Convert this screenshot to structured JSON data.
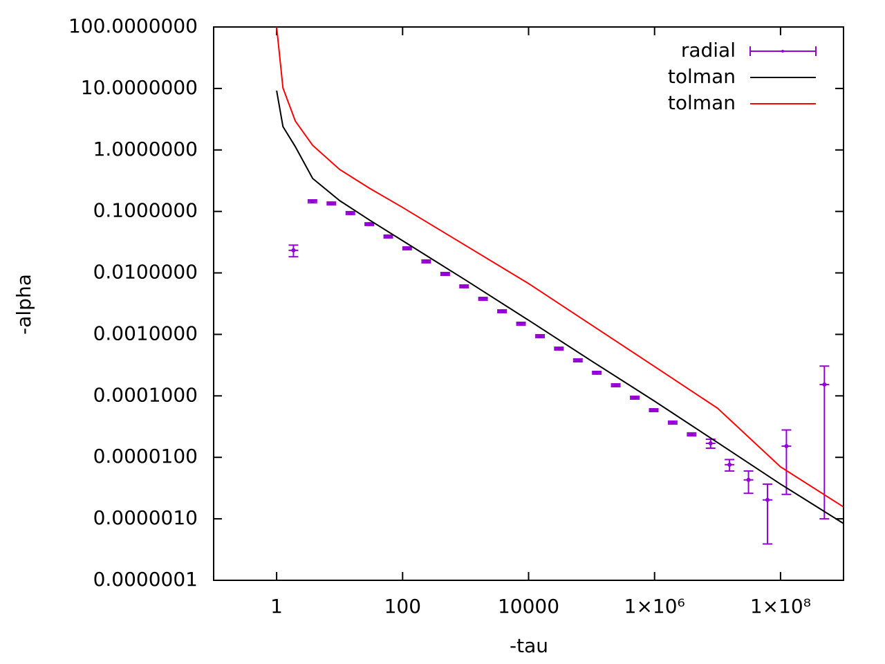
{
  "chart_data": {
    "type": "errorbar-line",
    "x_label": "-tau",
    "y_label": "-alpha",
    "xscale": "log",
    "yscale": "log",
    "legend": "top right",
    "xlim": [
      0.1,
      1000000000
    ],
    "ylim": [
      1e-07,
      100
    ],
    "xticks": [
      1,
      100,
      10000,
      {
        "value": 1000000,
        "label": "1×10⁶"
      },
      {
        "value": 100000000,
        "label": "1×10⁸"
      }
    ],
    "yticks": [
      {
        "value": 100,
        "label": "100.0000000"
      },
      {
        "value": 10,
        "label": "10.0000000"
      },
      {
        "value": 1,
        "label": "1.0000000"
      },
      {
        "value": 0.1,
        "label": "0.1000000"
      },
      {
        "value": 0.01,
        "label": "0.0100000"
      },
      {
        "value": 0.001,
        "label": "0.0010000"
      },
      {
        "value": 0.0001,
        "label": "0.0001000"
      },
      {
        "value": 1e-05,
        "label": "0.0000100"
      },
      {
        "value": 1e-06,
        "label": "0.0000010"
      },
      {
        "value": 1e-07,
        "label": "0.0000001"
      }
    ],
    "series": [
      {
        "name": "radial",
        "style": "errorbars",
        "color": "#9400d3",
        "x": [
          1.85,
          3.7,
          7.4,
          14.8,
          29.6,
          59.2,
          118,
          237,
          474,
          947,
          1890,
          3790,
          7580,
          15200,
          30300,
          60600,
          121000,
          242000,
          485000,
          970000,
          1940000,
          3880000,
          7760000,
          15500000,
          31000000,
          62100000,
          124000000,
          497000000
        ],
        "values": [
          0.0233,
          0.146,
          0.135,
          0.094,
          0.0622,
          0.0391,
          0.0251,
          0.0154,
          0.00964,
          0.00605,
          0.00379,
          0.00238,
          0.00149,
          0.000937,
          0.000588,
          0.000379,
          0.000238,
          0.000149,
          9.35e-05,
          5.86e-05,
          3.68e-05,
          2.37e-05,
          1.69e-05,
          7.6e-06,
          4.3e-06,
          2.03e-06,
          1.52e-05,
          0.000153
        ],
        "errors": [
          0.005,
          0.008,
          0.007,
          0.005,
          0.003,
          0.002,
          0.0013,
          0.0008,
          0.0005,
          0.0003,
          0.0002,
          0.00012,
          8e-05,
          5e-05,
          3e-05,
          2e-05,
          1.2e-05,
          8e-06,
          5e-06,
          3e-06,
          2e-06,
          1.3e-06,
          2.8e-06,
          1.6e-06,
          1.7e-06,
          1.64e-06,
          1.27e-05,
          0.000152
        ]
      },
      {
        "name": "tolman",
        "style": "line",
        "color": "#000000",
        "x": [
          1,
          1.26,
          1.98,
          3.73,
          10,
          29.6,
          100,
          1000,
          10000,
          100000,
          1000000,
          10000000,
          100000000,
          1000000000
        ],
        "values": [
          9.2,
          2.4,
          1.13,
          0.344,
          0.15,
          0.0728,
          0.0334,
          0.00764,
          0.0017,
          0.000369,
          8.2e-05,
          1.74e-05,
          3.67e-06,
          8.4e-07
        ]
      },
      {
        "name": "tolman",
        "style": "line",
        "color": "#ff0000",
        "x": [
          1,
          1.26,
          1.98,
          3.73,
          10,
          29.6,
          100,
          1000,
          10000,
          100000,
          1000000,
          10000000,
          100000000,
          1000000000
        ],
        "values": [
          100,
          10.2,
          2.95,
          1.19,
          0.482,
          0.239,
          0.116,
          0.0279,
          0.00671,
          0.00142,
          0.0003,
          6.3e-05,
          7e-06,
          1.56e-06
        ]
      }
    ]
  }
}
